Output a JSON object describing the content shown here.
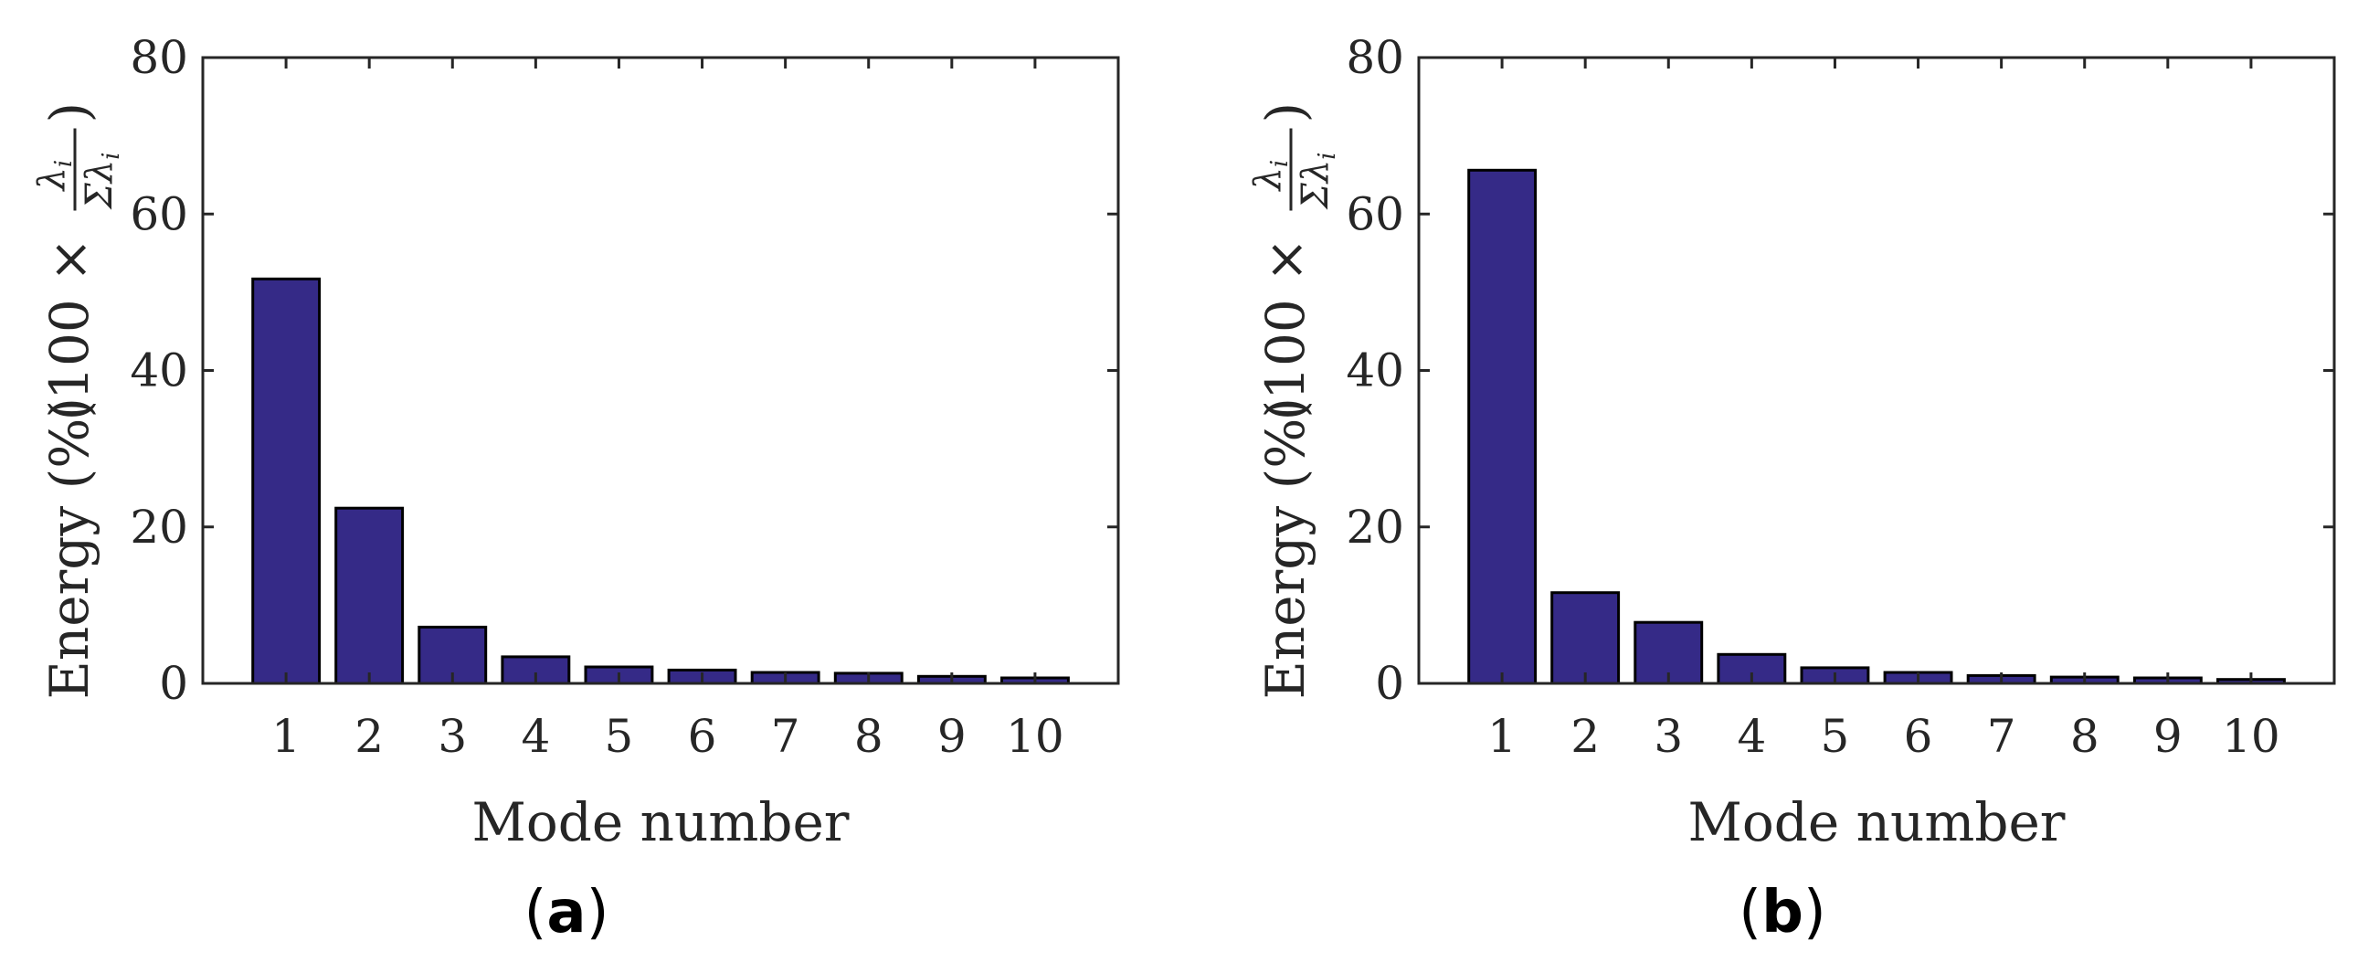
{
  "colors": {
    "bar_fill": "#352a87",
    "axis": "#262626"
  },
  "chart_data": [
    {
      "type": "bar",
      "panel_label": "a",
      "categories": [
        "1",
        "2",
        "3",
        "4",
        "5",
        "6",
        "7",
        "8",
        "9",
        "10"
      ],
      "values": [
        51.7,
        22.4,
        7.2,
        3.4,
        2.1,
        1.7,
        1.4,
        1.3,
        0.9,
        0.7
      ],
      "xlabel": "Mode number",
      "ylabel": {
        "text": "Energy (%)",
        "math_prefix": "(100 ×",
        "frac_numerator": "λ",
        "frac_denominator": "Σλ",
        "subscript": "i",
        "math_suffix": ")"
      },
      "ylim": [
        0,
        80
      ],
      "yticks": [
        "0",
        "20",
        "40",
        "60",
        "80"
      ],
      "grid": false
    },
    {
      "type": "bar",
      "panel_label": "b",
      "categories": [
        "1",
        "2",
        "3",
        "4",
        "5",
        "6",
        "7",
        "8",
        "9",
        "10"
      ],
      "values": [
        65.6,
        11.6,
        7.8,
        3.7,
        2.0,
        1.4,
        1.0,
        0.8,
        0.7,
        0.5
      ],
      "xlabel": "Mode number",
      "ylabel": {
        "text": "Energy (%)",
        "math_prefix": "(100 ×",
        "frac_numerator": "λ",
        "frac_denominator": "Σλ",
        "subscript": "i",
        "math_suffix": ")"
      },
      "ylim": [
        0,
        80
      ],
      "yticks": [
        "0",
        "20",
        "40",
        "60",
        "80"
      ],
      "grid": false
    }
  ]
}
